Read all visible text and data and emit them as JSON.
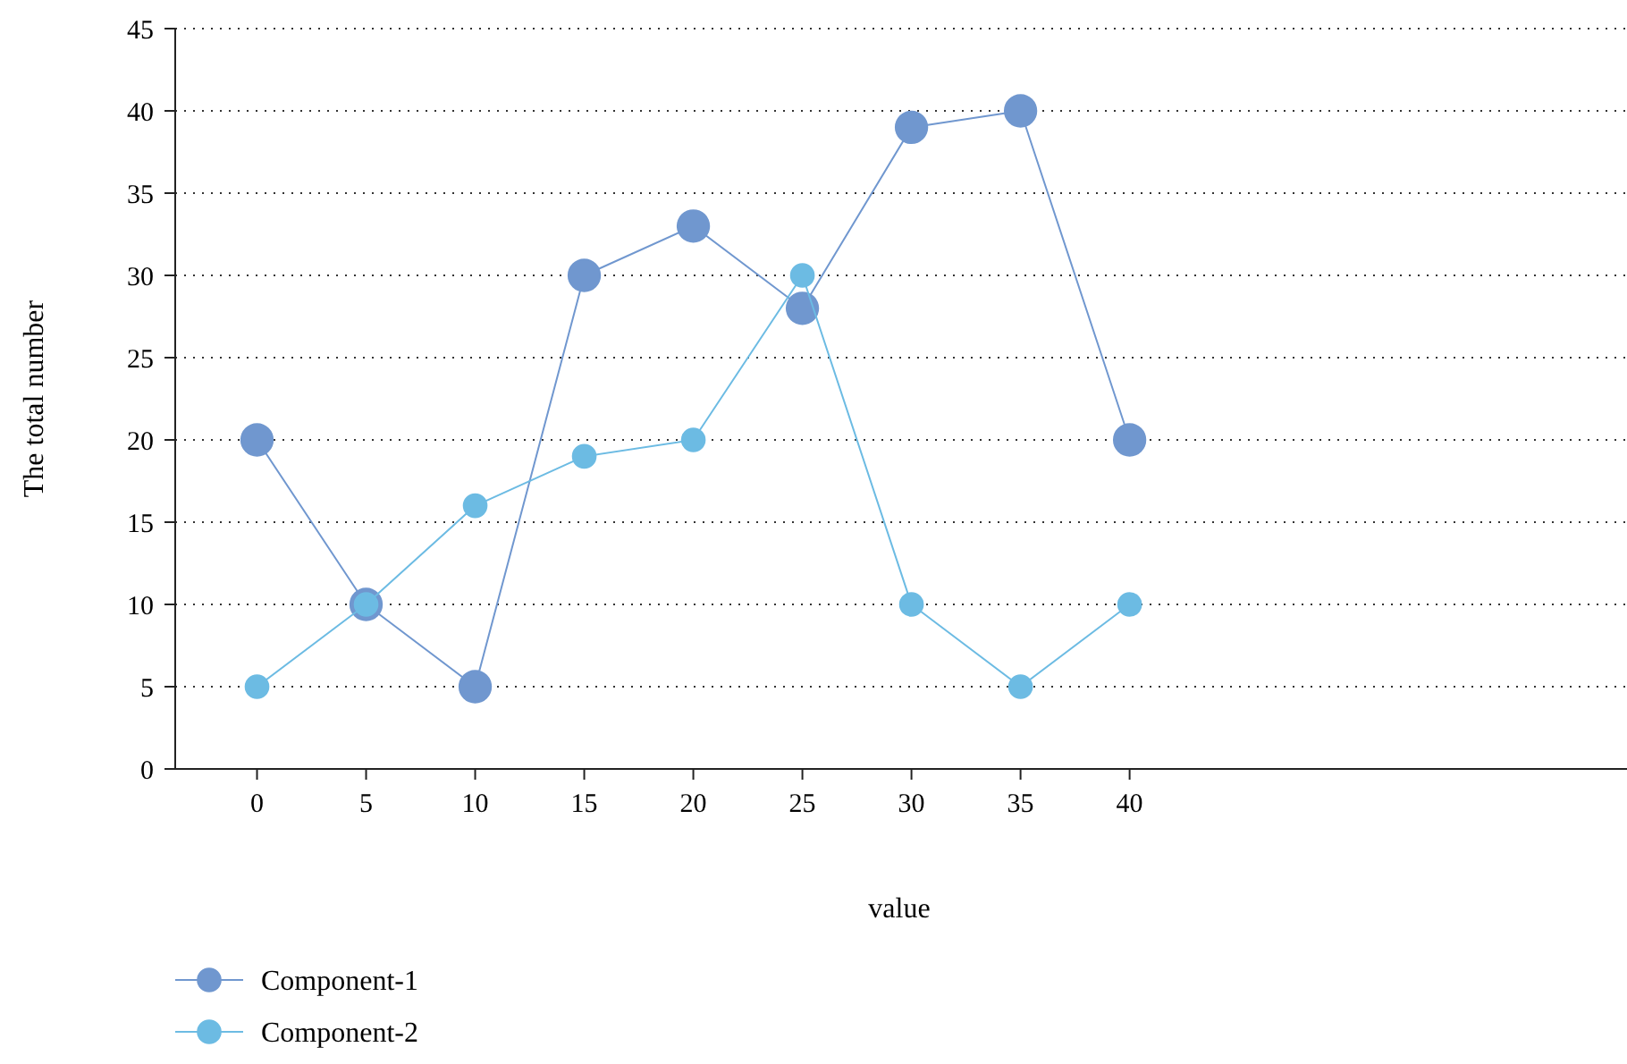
{
  "chart_data": {
    "type": "line",
    "xlabel": "value",
    "ylabel": "The total number",
    "x": [
      0,
      5,
      10,
      15,
      20,
      25,
      30,
      35,
      40
    ],
    "xlim": [
      -3.75,
      62.8
    ],
    "xticks": [
      0,
      5,
      10,
      15,
      20,
      25,
      30,
      35,
      40
    ],
    "ylim": [
      0,
      45
    ],
    "yticks": [
      0,
      5,
      10,
      15,
      20,
      25,
      30,
      35,
      40,
      45
    ],
    "grid": "y",
    "legend": "bottom left",
    "marker": "circle",
    "line_style": "solid",
    "series": [
      {
        "name": "Component-1",
        "color": "#7097cf",
        "values": [
          20,
          10,
          5,
          30,
          33,
          28,
          39,
          40,
          20
        ]
      },
      {
        "name": "Component-2",
        "color": "#6cbbe3",
        "values": [
          5,
          10,
          16,
          19,
          20,
          30,
          10,
          5,
          10
        ]
      }
    ]
  }
}
